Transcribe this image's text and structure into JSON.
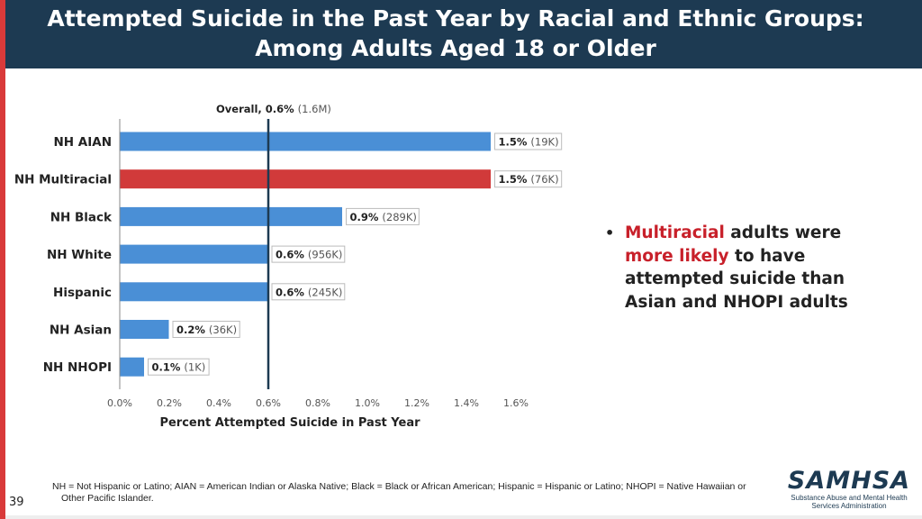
{
  "header": {
    "title_line1": "Attempted Suicide in the Past Year by Racial and Ethnic Groups:",
    "title_line2": "Among Adults Aged 18 or Older"
  },
  "chart_data": {
    "type": "bar",
    "orientation": "horizontal",
    "categories": [
      "NH AIAN",
      "NH Multiracial",
      "NH Black",
      "NH White",
      "Hispanic",
      "NH Asian",
      "NH NHOPI"
    ],
    "values": [
      1.5,
      1.5,
      0.9,
      0.6,
      0.6,
      0.2,
      0.1
    ],
    "value_labels": [
      "1.5%",
      "1.5%",
      "0.9%",
      "0.6%",
      "0.6%",
      "0.2%",
      "0.1%"
    ],
    "count_labels": [
      "(19K)",
      "(76K)",
      "(289K)",
      "(956K)",
      "(245K)",
      "(36K)",
      "(1K)"
    ],
    "bar_colors": [
      "#4a8fd6",
      "#d13a3a",
      "#4a8fd6",
      "#4a8fd6",
      "#4a8fd6",
      "#4a8fd6",
      "#4a8fd6"
    ],
    "reference_line": {
      "value": 0.6,
      "label": "Overall, 0.6%",
      "count": "(1.6M)"
    },
    "xlim": [
      0,
      1.6
    ],
    "x_ticks": [
      0.0,
      0.2,
      0.4,
      0.6,
      0.8,
      1.0,
      1.2,
      1.4,
      1.6
    ],
    "x_tick_labels": [
      "0.0%",
      "0.2%",
      "0.4%",
      "0.6%",
      "0.8%",
      "1.0%",
      "1.2%",
      "1.4%",
      "1.6%"
    ],
    "xlabel": "Percent Attempted Suicide in Past Year",
    "grid": false
  },
  "bullet": {
    "part1": "Multiracial",
    "part2": " adults were ",
    "part3": "more likely",
    "part4": " to have attempted suicide than Asian and NHOPI adults"
  },
  "footnote": {
    "line1": "NH = Not Hispanic or Latino; AIAN = American Indian or Alaska Native; Black = Black or African American; Hispanic = Hispanic or Latino; NHOPI = Native Hawaiian or",
    "line2": "Other Pacific Islander."
  },
  "page_number": "39",
  "logo": {
    "name": "SAMHSA",
    "tagline_line1": "Substance Abuse and Mental Health",
    "tagline_line2": "Services Administration"
  },
  "colors": {
    "header_bg": "#1d3a52",
    "accent_red": "#c8202a",
    "bar_blue": "#4a8fd6",
    "bar_red": "#d13a3a"
  }
}
